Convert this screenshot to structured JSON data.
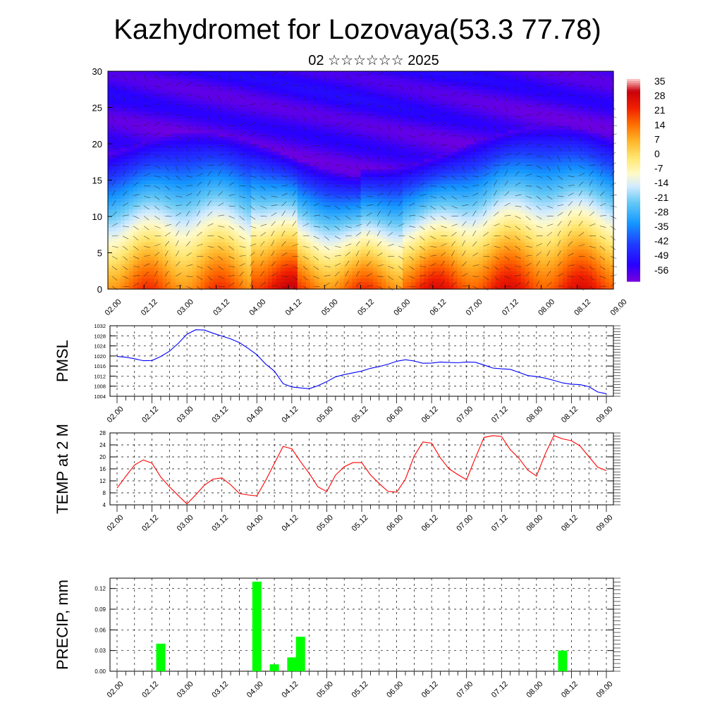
{
  "title": "Kazhydromet for Lozovaya(53.3 77.78)",
  "subtitle": "02 ☆☆☆☆☆☆ 2025",
  "x_ticks": [
    "02.00",
    "02.12",
    "03.00",
    "03.12",
    "04.00",
    "04.12",
    "05.00",
    "05.12",
    "06.00",
    "06.12",
    "07.00",
    "07.12",
    "08.00",
    "08.12",
    "09.00"
  ],
  "chart_data": [
    {
      "type": "heatmap",
      "description_hint": "Vertical cross-section of temperature (colors) with wind barbs",
      "x_ticks": [
        "02.00",
        "02.12",
        "03.00",
        "03.12",
        "04.00",
        "04.12",
        "05.00",
        "05.12",
        "06.00",
        "06.12",
        "07.00",
        "07.12",
        "08.00",
        "08.12",
        "09.00"
      ],
      "y_ticks": [
        0,
        5,
        10,
        15,
        20,
        25,
        30
      ],
      "ylim": [
        0,
        30
      ],
      "colorbar_labels": [
        "35",
        "28",
        "21",
        "14",
        "7",
        "0",
        "-7",
        "-14",
        "-21",
        "-28",
        "-35",
        "-42",
        "-49",
        "-56"
      ],
      "colorbar_range": [
        -60,
        38
      ]
    },
    {
      "type": "line",
      "ylabel": "PMSL",
      "ylim": [
        1004,
        1032
      ],
      "y_ticks": [
        1004,
        1008,
        1012,
        1016,
        1020,
        1024,
        1028,
        1032
      ],
      "color": "#0000ff",
      "x": [
        0,
        1,
        2,
        3,
        4,
        5,
        6,
        7,
        8,
        9,
        10,
        11,
        12,
        13,
        14,
        15,
        16,
        17,
        18,
        19,
        20,
        21,
        22,
        23,
        24,
        25,
        26,
        27,
        28,
        29,
        30,
        31,
        32,
        33,
        34,
        35,
        36,
        37,
        38,
        39,
        40,
        41,
        42,
        43,
        44,
        45,
        46,
        47,
        48,
        49,
        50,
        51,
        52,
        53,
        54,
        55,
        56
      ],
      "values": [
        1019.8,
        1019.5,
        1018.9,
        1018.1,
        1018.2,
        1019.8,
        1021.9,
        1025.0,
        1028.6,
        1030.4,
        1030.3,
        1029.0,
        1027.9,
        1026.8,
        1025.3,
        1023.0,
        1020.5,
        1016.8,
        1014.0,
        1009.0,
        1007.7,
        1007.3,
        1007.0,
        1008.2,
        1009.8,
        1011.7,
        1012.6,
        1013.3,
        1014.0,
        1015.1,
        1015.8,
        1016.7,
        1017.9,
        1018.5,
        1018.0,
        1017.1,
        1017.2,
        1017.6,
        1017.4,
        1017.3,
        1017.6,
        1017.5,
        1016.4,
        1015.2,
        1014.9,
        1014.7,
        1013.5,
        1012.2,
        1011.8,
        1011.2,
        1010.3,
        1009.3,
        1008.8,
        1008.6,
        1007.8,
        1005.7,
        1005.0
      ]
    },
    {
      "type": "line",
      "ylabel": "TEMP at 2 M",
      "ylim": [
        4,
        28
      ],
      "y_ticks": [
        4,
        8,
        12,
        16,
        20,
        24,
        28
      ],
      "color": "#ff0000",
      "x": [
        0,
        1,
        2,
        3,
        4,
        5,
        6,
        7,
        8,
        9,
        10,
        11,
        12,
        13,
        14,
        15,
        16,
        17,
        18,
        19,
        20,
        21,
        22,
        23,
        24,
        25,
        26,
        27,
        28,
        29,
        30,
        31,
        32,
        33,
        34,
        35,
        36,
        37,
        38,
        39,
        40,
        41,
        42,
        43,
        44,
        45,
        46,
        47,
        48,
        49,
        50,
        51,
        52,
        53,
        54,
        55,
        56
      ],
      "values": [
        9.6,
        13.5,
        17.3,
        19.0,
        17.9,
        13.3,
        10.0,
        7.1,
        4.3,
        7.3,
        10.6,
        12.6,
        13.0,
        10.7,
        7.8,
        7.3,
        7.0,
        12.1,
        17.8,
        23.5,
        22.7,
        18.4,
        14.5,
        10.0,
        8.4,
        13.9,
        16.7,
        18.1,
        18.1,
        14.0,
        11.1,
        8.5,
        8.2,
        12.6,
        20.3,
        25.0,
        24.6,
        19.7,
        16.0,
        14.1,
        12.4,
        19.6,
        26.5,
        27.1,
        26.8,
        22.4,
        19.5,
        15.6,
        13.6,
        21.0,
        27.1,
        26.0,
        25.4,
        23.6,
        20.1,
        16.6,
        15.4
      ]
    },
    {
      "type": "bar",
      "ylabel": "PRECIP, mm",
      "ylim": [
        0,
        0.135
      ],
      "y_ticks": [
        "0.00",
        "0.03",
        "0.06",
        "0.09",
        "0.12"
      ],
      "color": "#00ff00",
      "x": [
        5,
        16,
        18,
        20,
        21,
        51
      ],
      "values": [
        0.04,
        0.13,
        0.01,
        0.02,
        0.05,
        0.03
      ]
    }
  ]
}
